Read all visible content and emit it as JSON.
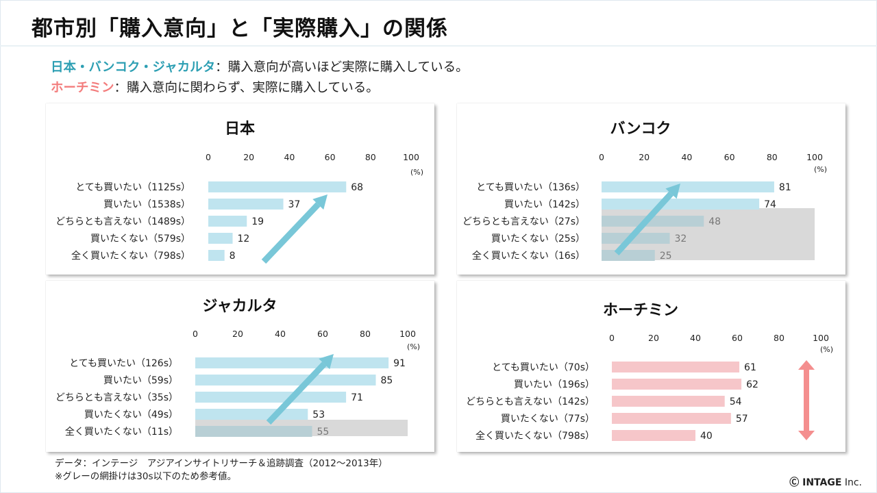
{
  "title": "都市別「購入意向」と「実際購入」の関係",
  "subtitle1": {
    "highlight": "日本・バンコク・ジャカルタ",
    "text": "：購入意向が高いほど実際に購入している。"
  },
  "subtitle2": {
    "highlight": "ホーチミン",
    "text": "：購入意向に関わらず、実際に購入している。"
  },
  "footer": {
    "source": "データ：インテージ　アジアインサイトリサーチ＆追跡調査（2012～2013年）",
    "note": "※グレーの網掛けは30s以下のため参考値。"
  },
  "copyright": {
    "mark": "Ⓒ INTAGE",
    "suffix": " Inc."
  },
  "colors": {
    "teal": "#2d9fb3",
    "pink": "#f37d7d",
    "bar_blue": "#bfe4ef",
    "bar_pink": "#f6c6c9",
    "arrow_blue": "#79c7d8",
    "arrow_pink": "#f48e8e",
    "grey_shade": "#d9d9d9",
    "bar_grey": "#b8cfd5"
  },
  "chart_data": [
    {
      "type": "bar",
      "title": "日本",
      "unit": "(%)",
      "xlim": [
        0,
        100
      ],
      "ticks": [
        0,
        20,
        40,
        60,
        80,
        100
      ],
      "categories": [
        "とても買いたい（1125s）",
        "買いたい（1538s）",
        "どちらとも言えない（1489s）",
        "買いたくない（579s）",
        "全く買いたくない（798s）"
      ],
      "values": [
        68,
        37,
        19,
        12,
        8
      ],
      "reference_only": [
        false,
        false,
        false,
        false,
        false
      ],
      "arrow": "up"
    },
    {
      "type": "bar",
      "title": "バンコク",
      "unit": "(%)",
      "xlim": [
        0,
        100
      ],
      "ticks": [
        0,
        20,
        40,
        60,
        80,
        100
      ],
      "categories": [
        "とても買いたい（136s）",
        "買いたい（142s）",
        "どちらとも言えない（27s）",
        "買いたくない（25s）",
        "全く買いたくない（16s）"
      ],
      "values": [
        81,
        74,
        48,
        32,
        25
      ],
      "reference_only": [
        false,
        false,
        true,
        true,
        true
      ],
      "arrow": "up"
    },
    {
      "type": "bar",
      "title": "ジャカルタ",
      "unit": "(%)",
      "xlim": [
        0,
        100
      ],
      "ticks": [
        0,
        20,
        40,
        60,
        80,
        100
      ],
      "categories": [
        "とても買いたい（126s）",
        "買いたい（59s）",
        "どちらとも言えない（35s）",
        "買いたくない（49s）",
        "全く買いたくない（11s）"
      ],
      "values": [
        91,
        85,
        71,
        53,
        55
      ],
      "reference_only": [
        false,
        false,
        false,
        false,
        true
      ],
      "arrow": "up"
    },
    {
      "type": "bar",
      "title": "ホーチミン",
      "unit": "(%)",
      "xlim": [
        0,
        100
      ],
      "ticks": [
        0,
        20,
        40,
        60,
        80,
        100
      ],
      "categories": [
        "とても買いたい（70s）",
        "買いたい（196s）",
        "どちらとも言えない（142s）",
        "買いたくない（77s）",
        "全く買いたくない（798s）"
      ],
      "values": [
        61,
        62,
        54,
        57,
        40
      ],
      "reference_only": [
        false,
        false,
        false,
        false,
        false
      ],
      "arrow": "vertical-double"
    }
  ]
}
